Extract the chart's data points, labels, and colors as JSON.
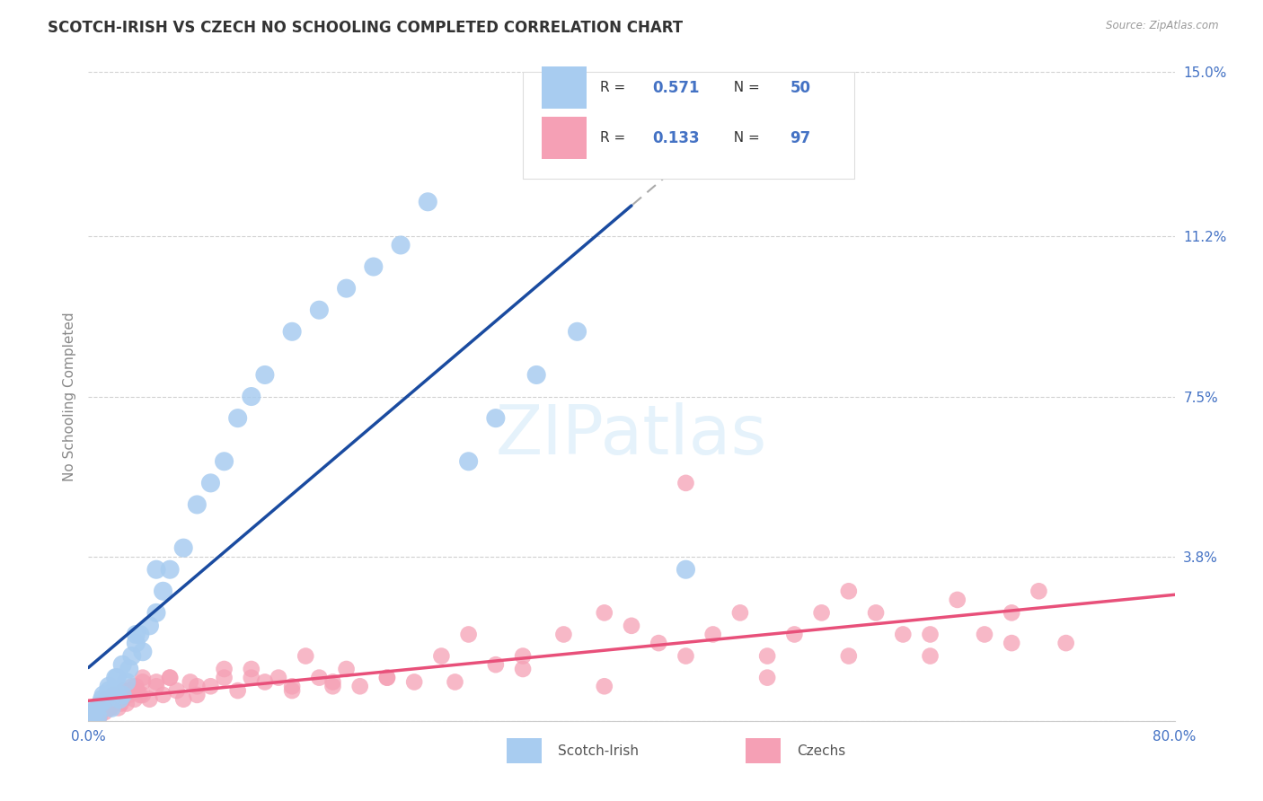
{
  "title": "SCOTCH-IRISH VS CZECH NO SCHOOLING COMPLETED CORRELATION CHART",
  "source": "Source: ZipAtlas.com",
  "ylabel": "No Schooling Completed",
  "watermark": "ZIPatlas",
  "scotch_irish": {
    "R": 0.571,
    "N": 50,
    "color": "#A8CCF0",
    "line_color": "#1A4BA0",
    "x": [
      0.3,
      0.5,
      0.7,
      0.9,
      1.1,
      1.3,
      1.5,
      1.7,
      1.9,
      2.1,
      2.3,
      2.5,
      2.8,
      3.0,
      3.2,
      3.5,
      3.8,
      4.0,
      4.5,
      5.0,
      5.5,
      6.0,
      7.0,
      8.0,
      9.0,
      10.0,
      11.0,
      12.0,
      13.0,
      15.0,
      17.0,
      19.0,
      21.0,
      23.0,
      25.0,
      28.0,
      30.0,
      33.0,
      36.0,
      40.0,
      44.0,
      0.2,
      0.4,
      0.6,
      1.0,
      1.5,
      2.0,
      2.5,
      3.5,
      5.0
    ],
    "y": [
      0.2,
      0.3,
      0.1,
      0.4,
      0.6,
      0.5,
      0.8,
      0.3,
      0.7,
      1.0,
      0.5,
      0.6,
      0.9,
      1.2,
      1.5,
      1.8,
      2.0,
      1.6,
      2.2,
      2.5,
      3.0,
      3.5,
      4.0,
      5.0,
      5.5,
      6.0,
      7.0,
      7.5,
      8.0,
      9.0,
      9.5,
      10.0,
      10.5,
      11.0,
      12.0,
      6.0,
      7.0,
      8.0,
      9.0,
      14.5,
      3.5,
      0.1,
      0.2,
      0.15,
      0.5,
      0.7,
      1.0,
      1.3,
      2.0,
      3.5
    ],
    "sizes": [
      300,
      250,
      200,
      280,
      260,
      300,
      280,
      250,
      300,
      280,
      260,
      300,
      280,
      300,
      280,
      300,
      280,
      260,
      300,
      280,
      300,
      280,
      300,
      280,
      300,
      280,
      300,
      280,
      300,
      280,
      300,
      280,
      300,
      280,
      300,
      280,
      300,
      280,
      300,
      280,
      300,
      200,
      220,
      210,
      260,
      280,
      300,
      280,
      260,
      280
    ]
  },
  "czechs": {
    "R": 0.133,
    "N": 97,
    "color": "#F5A0B5",
    "line_color": "#E8507A",
    "x": [
      0.2,
      0.4,
      0.6,
      0.8,
      1.0,
      1.2,
      1.4,
      1.6,
      1.8,
      2.0,
      2.2,
      2.4,
      2.6,
      2.8,
      3.0,
      3.2,
      3.4,
      3.6,
      3.8,
      4.0,
      4.5,
      5.0,
      5.5,
      6.0,
      6.5,
      7.0,
      7.5,
      8.0,
      9.0,
      10.0,
      11.0,
      12.0,
      13.0,
      14.0,
      15.0,
      16.0,
      17.0,
      18.0,
      19.0,
      20.0,
      22.0,
      24.0,
      26.0,
      28.0,
      30.0,
      32.0,
      35.0,
      38.0,
      40.0,
      42.0,
      44.0,
      46.0,
      48.0,
      50.0,
      52.0,
      54.0,
      56.0,
      58.0,
      60.0,
      62.0,
      64.0,
      66.0,
      68.0,
      70.0,
      72.0,
      0.3,
      0.5,
      0.7,
      0.9,
      1.1,
      1.3,
      1.5,
      2.0,
      2.5,
      3.0,
      3.5,
      4.0,
      5.0,
      6.0,
      8.0,
      10.0,
      12.0,
      15.0,
      18.0,
      22.0,
      27.0,
      32.0,
      38.0,
      44.0,
      50.0,
      56.0,
      62.0,
      68.0,
      0.8,
      1.6,
      2.4,
      4.0
    ],
    "y": [
      0.1,
      0.2,
      0.3,
      0.1,
      0.4,
      0.2,
      0.5,
      0.3,
      0.6,
      0.4,
      0.3,
      0.5,
      0.7,
      0.4,
      0.6,
      0.8,
      0.5,
      0.7,
      0.6,
      0.9,
      0.5,
      0.8,
      0.6,
      1.0,
      0.7,
      0.5,
      0.9,
      0.6,
      0.8,
      1.0,
      0.7,
      1.2,
      0.9,
      1.0,
      0.8,
      1.5,
      1.0,
      0.9,
      1.2,
      0.8,
      1.0,
      0.9,
      1.5,
      2.0,
      1.3,
      1.5,
      2.0,
      2.5,
      2.2,
      1.8,
      5.5,
      2.0,
      2.5,
      1.5,
      2.0,
      2.5,
      3.0,
      2.5,
      2.0,
      1.5,
      2.8,
      2.0,
      2.5,
      3.0,
      1.8,
      0.0,
      0.1,
      0.2,
      0.3,
      0.4,
      0.5,
      0.3,
      0.6,
      0.5,
      0.7,
      0.8,
      1.0,
      0.9,
      1.0,
      0.8,
      1.2,
      1.0,
      0.7,
      0.8,
      1.0,
      0.9,
      1.2,
      0.8,
      1.5,
      1.0,
      1.5,
      2.0,
      1.8,
      0.2,
      0.3,
      0.4,
      0.6
    ]
  },
  "xmin": 0.0,
  "xmax": 80.0,
  "ymin": 0.0,
  "ymax": 15.0,
  "yticks": [
    0.0,
    3.8,
    7.5,
    11.2,
    15.0
  ],
  "ytick_labels": [
    "",
    "3.8%",
    "7.5%",
    "11.2%",
    "15.0%"
  ],
  "xtick_labels": [
    "0.0%",
    "80.0%"
  ],
  "background_color": "#FFFFFF",
  "grid_color": "#CCCCCC",
  "title_color": "#333333",
  "axis_label_color": "#888888",
  "tick_color": "#4472C4",
  "legend_text_color": "#4472C4",
  "legend_r_label_color": "#333333"
}
